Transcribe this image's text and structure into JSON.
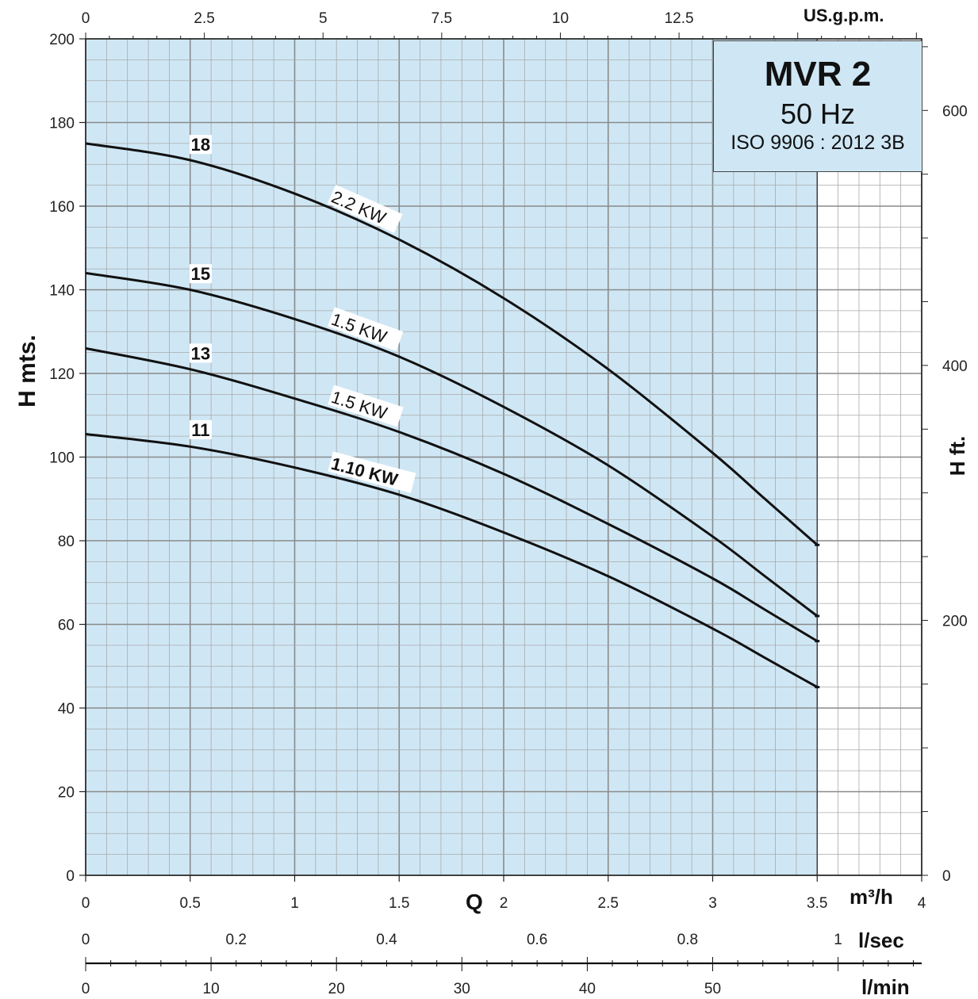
{
  "title_box": {
    "model": "MVR 2",
    "frequency": "50 Hz",
    "standard": "ISO 9906 : 2012 3B"
  },
  "colors": {
    "fill": "#cfe7f5",
    "grid_major": "#8a8a8a",
    "grid_minor": "#a9a9a9",
    "curve": "#111111"
  },
  "axes": {
    "y_left_label": "H mts.",
    "y_right_label": "H ft.",
    "x_bottom_unit": "m³/h",
    "q_label": "Q",
    "x_top_unit": "US.g.p.m.",
    "lsec_unit": "l/sec",
    "lmin_unit": "l/min"
  },
  "chart_data": {
    "type": "line",
    "xlabel": "Q m³/h",
    "ylabel": "H mts.",
    "xlim": [
      0,
      4
    ],
    "ylim": [
      0,
      200
    ],
    "x_ticks": [
      0,
      0.5,
      1,
      1.5,
      2,
      2.5,
      3,
      3.5,
      4
    ],
    "y_ticks": [
      0,
      20,
      40,
      60,
      80,
      100,
      120,
      140,
      160,
      180,
      200
    ],
    "top_axis": {
      "unit": "US.g.p.m.",
      "ticks": [
        0,
        2.5,
        5,
        7.5,
        10,
        12.5
      ]
    },
    "right_axis": {
      "unit": "H ft.",
      "ticks": [
        0,
        200,
        400,
        600
      ]
    },
    "lsec_axis": {
      "unit": "l/sec",
      "ticks": [
        0,
        0.2,
        0.4,
        0.6,
        0.8,
        1
      ]
    },
    "lmin_axis": {
      "unit": "l/min",
      "ticks": [
        0,
        10,
        20,
        30,
        40,
        50
      ]
    },
    "operating_range": [
      0,
      3.5
    ],
    "grid": true,
    "series": [
      {
        "name": "18",
        "power": "2.2 KW",
        "x": [
          0,
          0.5,
          1,
          1.5,
          2,
          2.5,
          3,
          3.25,
          3.5
        ],
        "y": [
          175,
          171,
          163,
          152,
          138,
          121,
          101,
          90,
          79
        ]
      },
      {
        "name": "15",
        "power": "1.5 KW",
        "x": [
          0,
          0.5,
          1,
          1.5,
          2,
          2.5,
          3,
          3.25,
          3.5
        ],
        "y": [
          144,
          140,
          133,
          124,
          112,
          98,
          81,
          71.5,
          62
        ]
      },
      {
        "name": "13",
        "power": "1.5 KW",
        "x": [
          0,
          0.5,
          1,
          1.5,
          2,
          2.5,
          3,
          3.25,
          3.5
        ],
        "y": [
          126,
          121,
          114,
          106,
          96,
          84,
          71,
          63.5,
          56
        ]
      },
      {
        "name": "11",
        "power": "1.10 KW",
        "x": [
          0,
          0.5,
          1,
          1.5,
          2,
          2.5,
          3,
          3.25,
          3.5
        ],
        "y": [
          105.5,
          102.5,
          97.5,
          91,
          82,
          71.5,
          59,
          52,
          45
        ]
      }
    ]
  }
}
